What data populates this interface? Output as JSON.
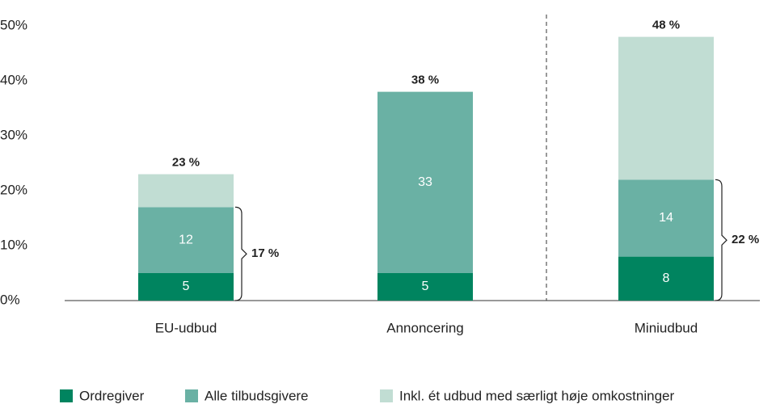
{
  "chart_data": {
    "type": "stacked_bar",
    "categories": [
      "EU-udbud",
      "Annoncering",
      "Miniudbud"
    ],
    "series": [
      {
        "name": "Ordregiver",
        "color": "#00845f",
        "values": [
          5,
          5,
          8
        ]
      },
      {
        "name": "Alle tilbudsgivere",
        "color": "#6ab1a4",
        "values": [
          12,
          33,
          14
        ]
      },
      {
        "name": "Inkl. ét udbud med særligt høje omkostninger",
        "color": "#c1ddd3",
        "values": [
          6,
          null,
          26
        ]
      }
    ],
    "totals": [
      23,
      38,
      48
    ],
    "total_labels": [
      "23 %",
      "38 %",
      "48 %"
    ],
    "brackets": [
      {
        "category": 0,
        "value": 17,
        "label": "17 %"
      },
      {
        "category": 2,
        "value": 22,
        "label": "22 %"
      }
    ],
    "ylim": [
      0,
      50
    ],
    "yticks": [
      {
        "value": 0,
        "label": "0%"
      },
      {
        "value": 10,
        "label": "10%"
      },
      {
        "value": 20,
        "label": "20%"
      },
      {
        "value": 30,
        "label": "30%"
      },
      {
        "value": 40,
        "label": "40%"
      },
      {
        "value": 50,
        "label": "50%"
      }
    ],
    "legend": "bottom",
    "grid": false
  }
}
